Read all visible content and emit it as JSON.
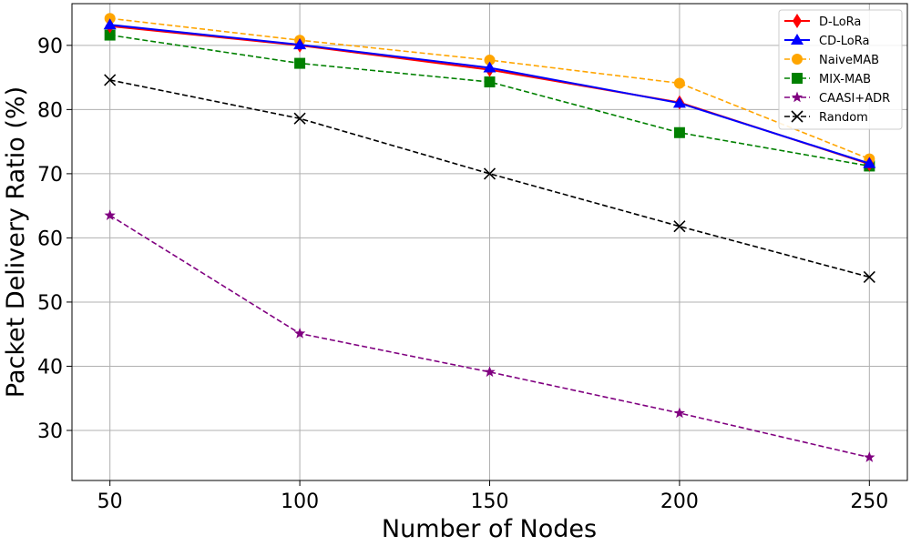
{
  "chart_data": {
    "type": "line",
    "xlabel": "Number of Nodes",
    "ylabel": "Packet Delivery Ratio (%)",
    "x": [
      50,
      100,
      150,
      200,
      250
    ],
    "xlim": [
      40,
      260
    ],
    "ylim": [
      22.2,
      96.5
    ],
    "xticks": [
      50,
      100,
      150,
      200,
      250
    ],
    "yticks": [
      30,
      40,
      50,
      60,
      70,
      80,
      90
    ],
    "grid": true,
    "legend_position": "top-right",
    "series": [
      {
        "name": "D-LoRa",
        "values": [
          93.0,
          90.0,
          86.2,
          81.1,
          71.5
        ],
        "color": "#ff0000",
        "marker": "thin_diamond",
        "linestyle": "solid"
      },
      {
        "name": "CD-LoRa",
        "values": [
          93.2,
          90.1,
          86.5,
          81.0,
          71.6
        ],
        "color": "#0000ff",
        "marker": "triangle",
        "linestyle": "solid"
      },
      {
        "name": "NaiveMAB",
        "values": [
          94.2,
          90.8,
          87.7,
          84.1,
          72.3
        ],
        "color": "#ffa500",
        "marker": "circle",
        "linestyle": "dashed"
      },
      {
        "name": "MIX-MAB",
        "values": [
          91.6,
          87.2,
          84.3,
          76.4,
          71.2
        ],
        "color": "#008000",
        "marker": "square",
        "linestyle": "dashed"
      },
      {
        "name": "CAASI+ADR",
        "values": [
          63.5,
          45.1,
          39.1,
          32.7,
          25.8
        ],
        "color": "#800080",
        "marker": "star",
        "linestyle": "dashed"
      },
      {
        "name": "Random",
        "values": [
          84.6,
          78.6,
          70.0,
          61.8,
          53.9
        ],
        "color": "#000000",
        "marker": "x",
        "linestyle": "dashed"
      }
    ]
  }
}
